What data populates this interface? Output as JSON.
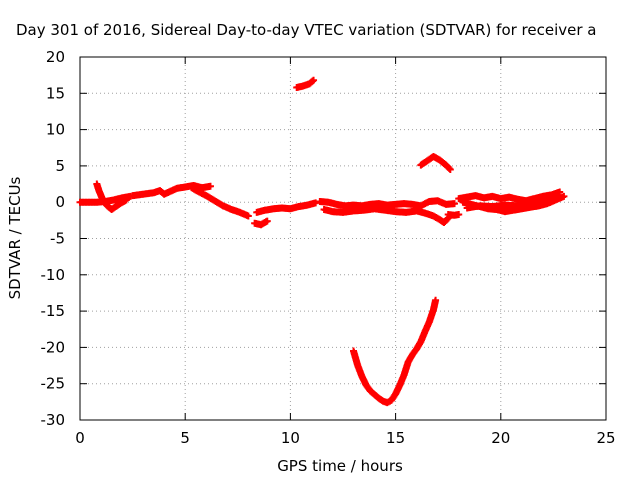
{
  "chart_data": {
    "type": "scatter",
    "title": "Day 301 of 2016, Sidereal Day-to-day VTEC variation (SDTVAR) for receiver a",
    "xlabel": "GPS time / hours",
    "ylabel": "SDTVAR / TECUs",
    "xlim": [
      0,
      25
    ],
    "ylim": [
      -30,
      20
    ],
    "xticks": [
      "0",
      "5",
      "10",
      "15",
      "20",
      "25"
    ],
    "yticks": [
      "20",
      "15",
      "10",
      "5",
      "0",
      "-5",
      "-10",
      "-15",
      "-20",
      "-25",
      "-30"
    ],
    "grid": true,
    "legend": "none",
    "marker": "plus",
    "series": [
      {
        "color": "#ff0000",
        "segments": [
          [
            [
              0.0,
              0.0
            ],
            [
              0.5,
              0.0
            ],
            [
              0.8,
              0.0
            ],
            [
              1.2,
              0.1
            ],
            [
              1.6,
              0.3
            ],
            [
              2.0,
              0.6
            ],
            [
              2.4,
              0.8
            ]
          ],
          [
            [
              0.8,
              2.5
            ],
            [
              0.9,
              1.6
            ],
            [
              1.0,
              0.9
            ],
            [
              1.1,
              0.2
            ],
            [
              1.3,
              -0.5
            ],
            [
              1.5,
              -1.0
            ],
            [
              1.7,
              -0.6
            ],
            [
              1.9,
              -0.2
            ],
            [
              2.2,
              0.3
            ]
          ],
          [
            [
              2.5,
              0.9
            ],
            [
              3.0,
              1.1
            ],
            [
              3.5,
              1.3
            ],
            [
              3.8,
              1.6
            ],
            [
              4.0,
              1.1
            ],
            [
              4.3,
              1.5
            ],
            [
              4.6,
              1.9
            ],
            [
              5.0,
              2.1
            ],
            [
              5.4,
              2.3
            ],
            [
              5.8,
              2.0
            ],
            [
              6.2,
              2.2
            ]
          ],
          [
            [
              5.3,
              2.0
            ],
            [
              5.6,
              1.5
            ],
            [
              6.0,
              0.9
            ],
            [
              6.4,
              0.2
            ],
            [
              6.8,
              -0.5
            ],
            [
              7.2,
              -1.0
            ],
            [
              7.6,
              -1.4
            ],
            [
              8.0,
              -1.9
            ]
          ],
          [
            [
              8.3,
              -2.9
            ],
            [
              8.6,
              -3.1
            ],
            [
              8.9,
              -2.6
            ]
          ],
          [
            [
              8.4,
              -1.4
            ],
            [
              8.8,
              -1.1
            ],
            [
              9.2,
              -0.9
            ],
            [
              9.6,
              -0.8
            ],
            [
              10.0,
              -0.9
            ],
            [
              10.4,
              -0.6
            ],
            [
              10.8,
              -0.4
            ],
            [
              11.2,
              -0.1
            ]
          ],
          [
            [
              10.3,
              15.8
            ],
            [
              10.6,
              16.0
            ],
            [
              10.9,
              16.3
            ],
            [
              11.1,
              16.8
            ]
          ],
          [
            [
              11.4,
              0.1
            ],
            [
              11.8,
              0.0
            ],
            [
              12.2,
              -0.3
            ],
            [
              12.6,
              -0.5
            ],
            [
              13.0,
              -0.4
            ],
            [
              13.4,
              -0.5
            ],
            [
              13.8,
              -0.3
            ],
            [
              14.2,
              -0.2
            ],
            [
              14.6,
              -0.4
            ],
            [
              15.0,
              -0.3
            ],
            [
              15.4,
              -0.2
            ],
            [
              15.8,
              -0.3
            ],
            [
              16.2,
              -0.5
            ],
            [
              16.6,
              0.1
            ],
            [
              17.0,
              0.2
            ],
            [
              17.4,
              -0.3
            ],
            [
              17.8,
              -0.2
            ]
          ],
          [
            [
              11.6,
              -1.0
            ],
            [
              12.0,
              -1.3
            ],
            [
              12.5,
              -1.4
            ],
            [
              13.0,
              -1.2
            ],
            [
              13.5,
              -1.1
            ],
            [
              14.0,
              -0.9
            ],
            [
              14.5,
              -1.1
            ],
            [
              15.0,
              -1.3
            ],
            [
              15.5,
              -1.4
            ],
            [
              16.0,
              -1.2
            ],
            [
              16.4,
              -1.5
            ],
            [
              16.8,
              -1.9
            ],
            [
              17.1,
              -2.4
            ],
            [
              17.3,
              -2.8
            ],
            [
              17.5,
              -2.2
            ]
          ],
          [
            [
              16.2,
              5.1
            ],
            [
              16.5,
              5.7
            ],
            [
              16.8,
              6.3
            ],
            [
              17.1,
              5.8
            ],
            [
              17.4,
              5.1
            ],
            [
              17.6,
              4.5
            ]
          ],
          [
            [
              13.0,
              -20.5
            ],
            [
              13.2,
              -22.5
            ],
            [
              13.4,
              -24.0
            ],
            [
              13.6,
              -25.2
            ],
            [
              13.8,
              -26.0
            ],
            [
              14.0,
              -26.5
            ],
            [
              14.2,
              -27.0
            ],
            [
              14.4,
              -27.4
            ],
            [
              14.6,
              -27.6
            ],
            [
              14.8,
              -27.3
            ],
            [
              15.0,
              -26.4
            ],
            [
              15.2,
              -25.2
            ],
            [
              15.4,
              -23.8
            ],
            [
              15.6,
              -22.0
            ],
            [
              15.8,
              -21.0
            ],
            [
              16.0,
              -20.2
            ],
            [
              16.2,
              -19.2
            ],
            [
              16.4,
              -17.8
            ],
            [
              16.6,
              -16.5
            ],
            [
              16.8,
              -14.8
            ],
            [
              16.9,
              -13.5
            ]
          ],
          [
            [
              17.5,
              -1.7
            ],
            [
              17.8,
              -1.8
            ],
            [
              18.0,
              -1.7
            ]
          ],
          [
            [
              18.0,
              0.5
            ],
            [
              18.4,
              0.7
            ],
            [
              18.8,
              0.9
            ],
            [
              19.2,
              0.6
            ],
            [
              19.6,
              0.8
            ],
            [
              20.0,
              0.5
            ],
            [
              20.4,
              0.7
            ],
            [
              20.8,
              0.4
            ],
            [
              21.2,
              0.2
            ],
            [
              21.6,
              0.5
            ],
            [
              22.0,
              0.8
            ],
            [
              22.4,
              1.0
            ],
            [
              22.8,
              1.4
            ]
          ],
          [
            [
              18.2,
              0.0
            ],
            [
              18.6,
              -0.3
            ],
            [
              19.0,
              -0.6
            ],
            [
              19.4,
              -0.9
            ],
            [
              19.8,
              -1.0
            ],
            [
              20.2,
              -1.3
            ],
            [
              20.6,
              -1.1
            ],
            [
              21.0,
              -0.9
            ],
            [
              21.4,
              -0.7
            ],
            [
              21.8,
              -0.5
            ],
            [
              22.2,
              -0.2
            ],
            [
              22.6,
              0.3
            ],
            [
              23.0,
              0.8
            ]
          ],
          [
            [
              18.4,
              -0.8
            ],
            [
              19.0,
              -0.5
            ],
            [
              19.6,
              -0.6
            ],
            [
              20.2,
              -0.4
            ],
            [
              20.8,
              -0.5
            ],
            [
              21.4,
              -0.2
            ],
            [
              22.0,
              0.0
            ],
            [
              22.6,
              0.5
            ]
          ]
        ]
      }
    ]
  }
}
